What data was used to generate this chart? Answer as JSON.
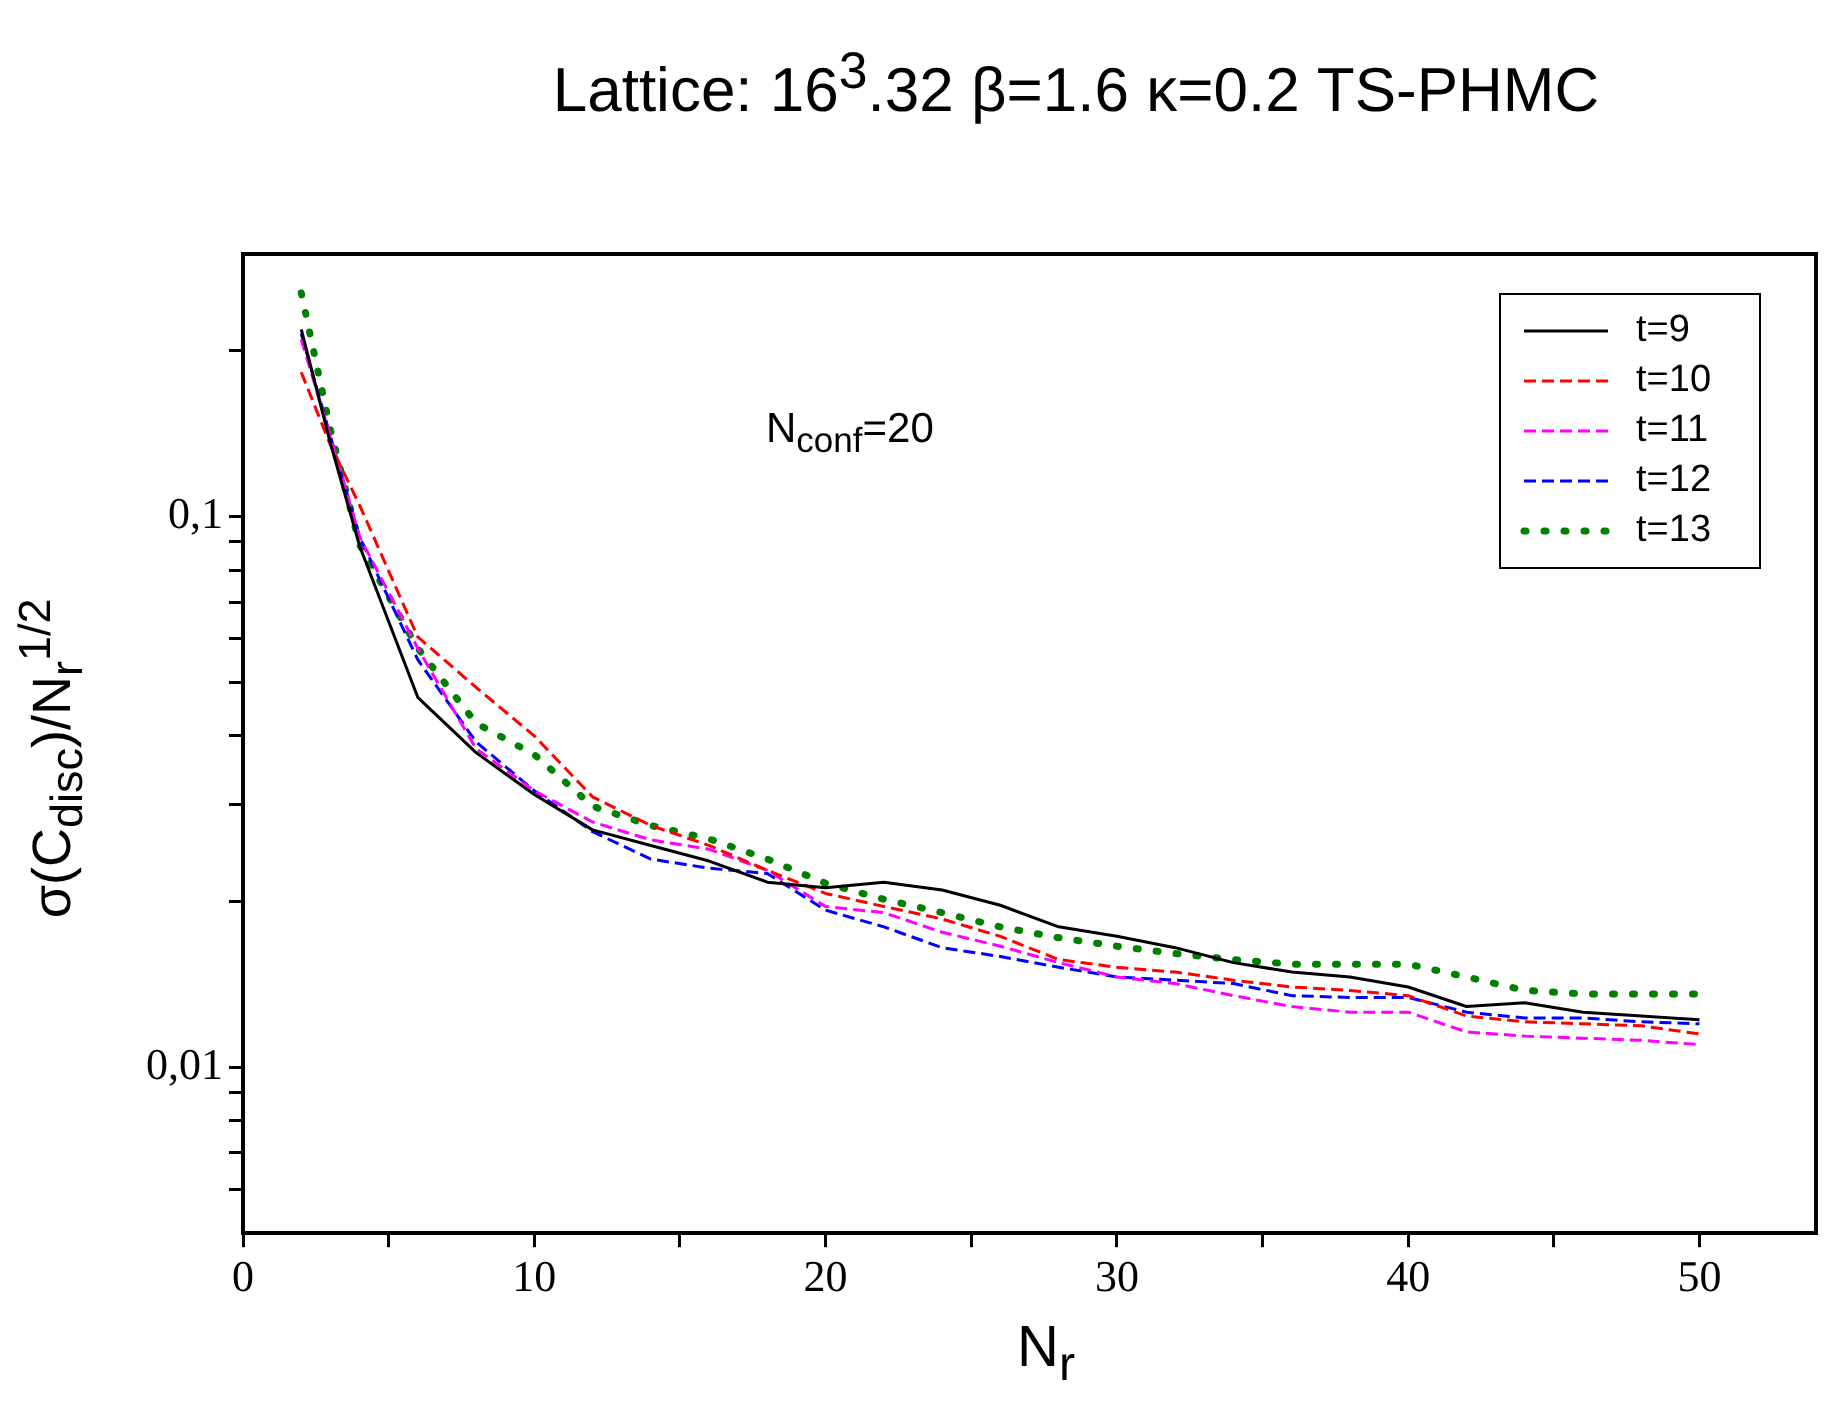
{
  "chart_data": {
    "type": "line",
    "title": "Lattice: 16$^{3}$.32 β=1.6 κ=0.2  TS-PHMC",
    "xlabel": "N$_{r}$",
    "ylabel": "σ(C$_{disc}$)/N$_{r}$$^{1/2}$",
    "annotations": [
      "N$_{conf}$=20"
    ],
    "x": [
      2,
      3,
      4,
      6,
      8,
      10,
      12,
      14,
      16,
      18,
      20,
      22,
      24,
      26,
      28,
      30,
      32,
      34,
      36,
      38,
      40,
      42,
      44,
      46,
      48,
      50
    ],
    "series": [
      {
        "name": "t=9",
        "color": "#000000",
        "line_style": "solid",
        "values": [
          0.219,
          0.136,
          0.0886,
          0.047,
          0.0373,
          0.0313,
          0.027,
          0.0253,
          0.0237,
          0.0217,
          0.0212,
          0.0217,
          0.021,
          0.0197,
          0.018,
          0.0173,
          0.0165,
          0.0155,
          0.0149,
          0.0146,
          0.014,
          0.0129,
          0.0131,
          0.0126,
          0.0124,
          0.0122
        ]
      },
      {
        "name": "t=10",
        "color": "#ff0000",
        "line_style": "dashed",
        "values": [
          0.183,
          0.135,
          0.105,
          0.0605,
          0.049,
          0.04,
          0.031,
          0.0275,
          0.0253,
          0.0228,
          0.0207,
          0.0196,
          0.0186,
          0.0173,
          0.0157,
          0.0152,
          0.0149,
          0.0144,
          0.014,
          0.0138,
          0.0135,
          0.0124,
          0.0121,
          0.012,
          0.0119,
          0.0115
        ]
      },
      {
        "name": "t=11",
        "color": "#ff00ff",
        "line_style": "dashed",
        "values": [
          0.21,
          0.14,
          0.092,
          0.0577,
          0.0379,
          0.0318,
          0.0279,
          0.0259,
          0.0249,
          0.0228,
          0.0196,
          0.0191,
          0.0176,
          0.0166,
          0.0155,
          0.0146,
          0.0142,
          0.0135,
          0.0129,
          0.0126,
          0.0126,
          0.0116,
          0.0114,
          0.0113,
          0.0112,
          0.011
        ]
      },
      {
        "name": "t=12",
        "color": "#0000ff",
        "line_style": "dashed",
        "values": [
          0.215,
          0.14,
          0.092,
          0.055,
          0.039,
          0.0318,
          0.0268,
          0.0239,
          0.023,
          0.0225,
          0.0193,
          0.018,
          0.0165,
          0.0159,
          0.0152,
          0.0146,
          0.0144,
          0.0142,
          0.0135,
          0.0134,
          0.0134,
          0.0126,
          0.0123,
          0.0123,
          0.0121,
          0.012
        ]
      },
      {
        "name": "t=13",
        "color": "#008000",
        "line_style": "dotted",
        "values": [
          0.255,
          0.144,
          0.089,
          0.0577,
          0.0422,
          0.037,
          0.0298,
          0.0275,
          0.026,
          0.0239,
          0.0216,
          0.0202,
          0.0191,
          0.018,
          0.0172,
          0.0166,
          0.0161,
          0.0157,
          0.0154,
          0.0154,
          0.0154,
          0.0146,
          0.0138,
          0.0136,
          0.0136,
          0.0136
        ]
      }
    ],
    "log": "y",
    "xlim": [
      0,
      54
    ],
    "ylim": [
      0.005,
      0.3
    ],
    "xticks": [
      0,
      {
        "value": 5,
        "label": null
      },
      10,
      {
        "value": 15,
        "label": null
      },
      20,
      {
        "value": 25,
        "label": null
      },
      30,
      {
        "value": 35,
        "label": null
      },
      40,
      {
        "value": 45,
        "label": null
      },
      50
    ],
    "yticks": [
      {
        "value": 0.006,
        "label": null
      },
      {
        "value": 0.007,
        "label": null
      },
      {
        "value": 0.008,
        "label": null
      },
      {
        "value": 0.009,
        "label": null
      },
      {
        "value": 0.01,
        "label": "0,01"
      },
      {
        "value": 0.02,
        "label": null
      },
      {
        "value": 0.03,
        "label": null
      },
      {
        "value": 0.04,
        "label": null
      },
      {
        "value": 0.05,
        "label": null
      },
      {
        "value": 0.06,
        "label": null
      },
      {
        "value": 0.07,
        "label": null
      },
      {
        "value": 0.08,
        "label": null
      },
      {
        "value": 0.09,
        "label": null
      },
      {
        "value": 0.1,
        "label": "0,1"
      },
      {
        "value": 0.2,
        "label": null
      }
    ],
    "grid": false,
    "legend": "top right",
    "marker": "none"
  }
}
